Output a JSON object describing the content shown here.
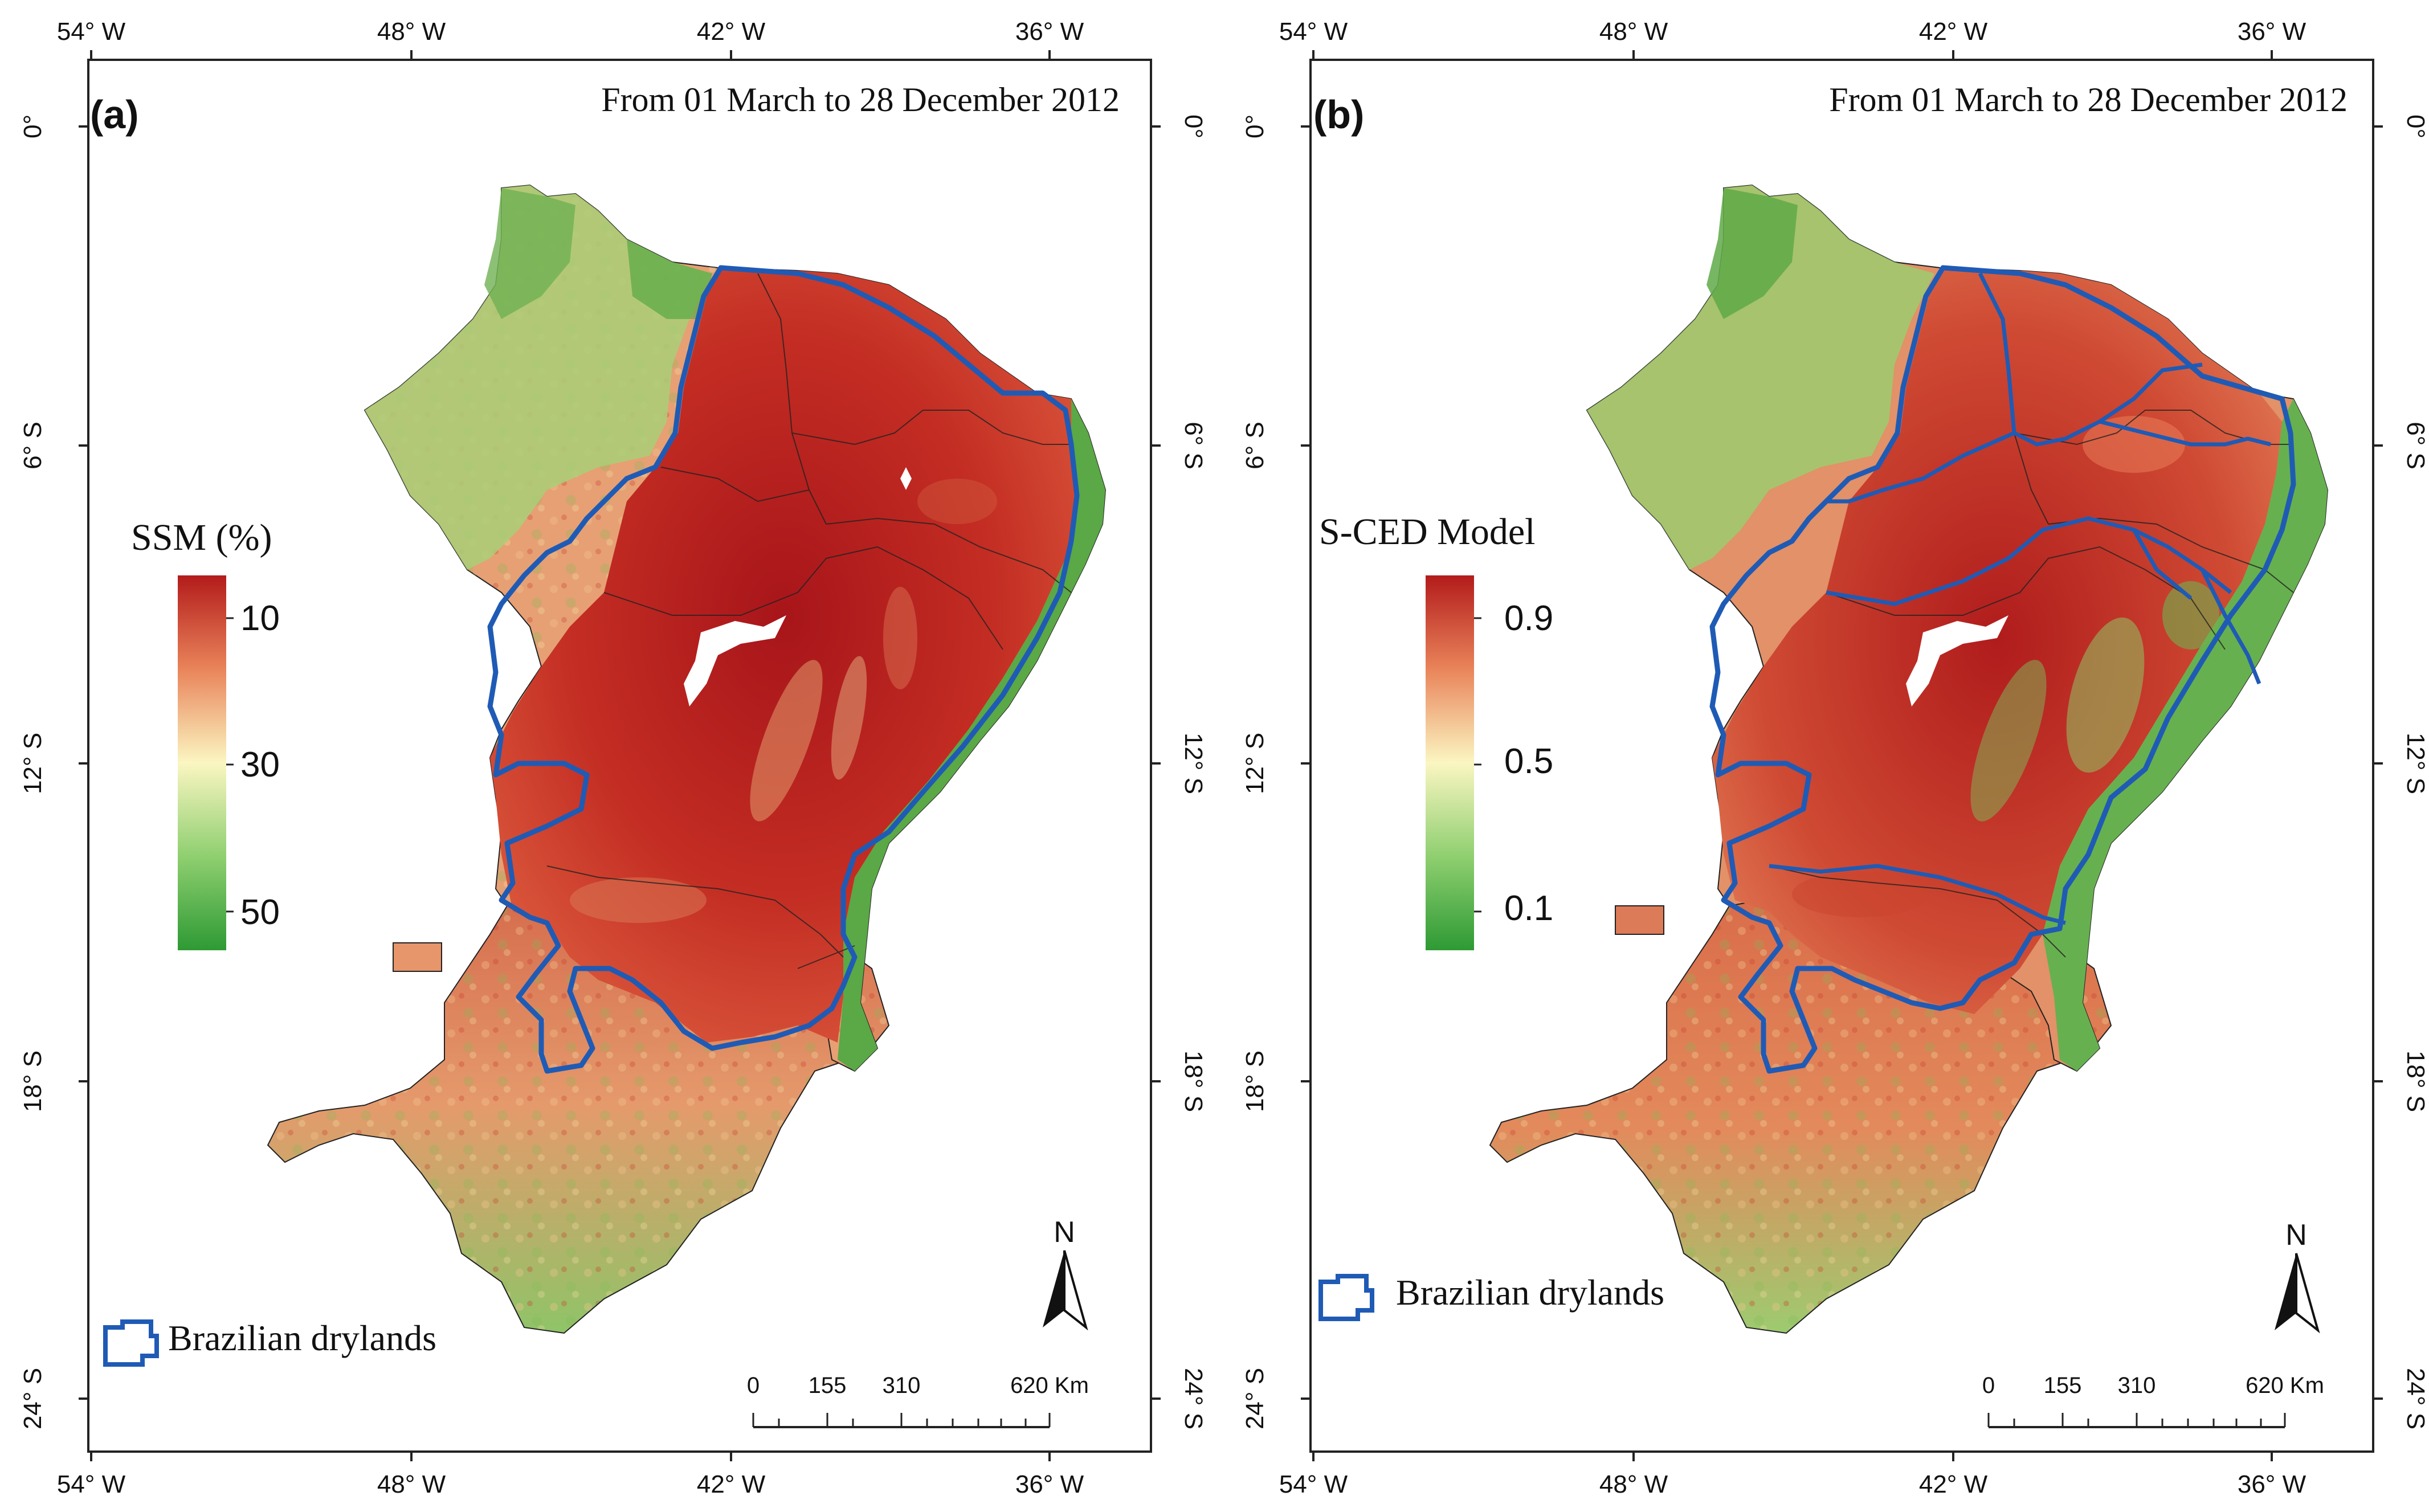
{
  "figure": {
    "panels": [
      {
        "id": "a",
        "label": "(a)",
        "date_range": "From 01 March to 28 December 2012",
        "legend": {
          "title": "SSM (%)",
          "ticks": [
            "10",
            "30",
            "50"
          ],
          "colors": [
            "#b31b1b",
            "#e9845a",
            "#fbf6c2",
            "#8fcf70",
            "#2e9a34"
          ]
        },
        "boundary_legend": "Brazilian drylands",
        "north_label": "N",
        "scale": {
          "ticks": [
            "0",
            "155",
            "310",
            "620 Km"
          ]
        },
        "axes": {
          "top": [
            "54° W",
            "48° W",
            "42° W",
            "36° W"
          ],
          "bottom": [
            "54° W",
            "48° W",
            "42° W",
            "36° W"
          ],
          "left": [
            "0°",
            "6° S",
            "12° S",
            "18° S",
            "24° S"
          ],
          "right": [
            "0°",
            "6° S",
            "12° S",
            "18° S",
            "24° S"
          ]
        }
      },
      {
        "id": "b",
        "label": "(b)",
        "date_range": "From 01 March to 28 December 2012",
        "legend": {
          "title": "S-CED Model",
          "ticks": [
            "0.9",
            "0.5",
            "0.1"
          ],
          "colors": [
            "#b31b1b",
            "#e9845a",
            "#fbf6c2",
            "#8fcf70",
            "#2e9a34"
          ]
        },
        "boundary_legend": "Brazilian drylands",
        "north_label": "N",
        "scale": {
          "ticks": [
            "0",
            "155",
            "310",
            "620 Km"
          ]
        },
        "axes": {
          "top": [
            "54° W",
            "48° W",
            "42° W",
            "36° W"
          ],
          "bottom": [
            "54° W",
            "48° W",
            "42° W",
            "36° W"
          ],
          "left": [
            "0°",
            "6° S",
            "12° S",
            "18° S",
            "24° S"
          ],
          "right": [
            "0°",
            "6° S",
            "12° S",
            "18° S",
            "24° S"
          ]
        }
      }
    ],
    "colors": {
      "boundary": "#1f5bb5",
      "dry": "#b51f1c",
      "mid": "#e8a070",
      "wet": "#4a9e3e"
    }
  }
}
